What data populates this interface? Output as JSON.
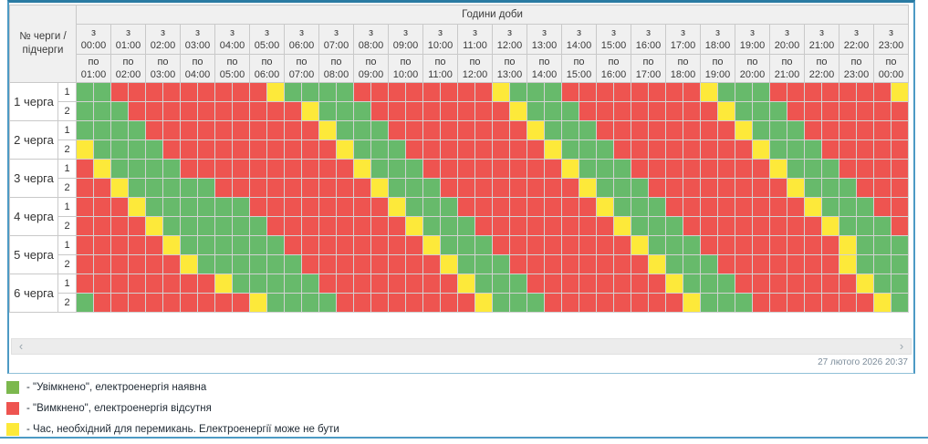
{
  "colors": {
    "on": "#67ba6b",
    "off": "#ee5450",
    "switch": "#fde93a"
  },
  "table": {
    "corner_label": "№ черги / підчерги",
    "hours_header": "Години доби",
    "from_prefix": "з",
    "to_prefix": "по",
    "hours": [
      {
        "from": "00:00",
        "to": "01:00"
      },
      {
        "from": "01:00",
        "to": "02:00"
      },
      {
        "from": "02:00",
        "to": "03:00"
      },
      {
        "from": "03:00",
        "to": "04:00"
      },
      {
        "from": "04:00",
        "to": "05:00"
      },
      {
        "from": "05:00",
        "to": "06:00"
      },
      {
        "from": "06:00",
        "to": "07:00"
      },
      {
        "from": "07:00",
        "to": "08:00"
      },
      {
        "from": "08:00",
        "to": "09:00"
      },
      {
        "from": "09:00",
        "to": "10:00"
      },
      {
        "from": "10:00",
        "to": "11:00"
      },
      {
        "from": "11:00",
        "to": "12:00"
      },
      {
        "from": "12:00",
        "to": "13:00"
      },
      {
        "from": "13:00",
        "to": "14:00"
      },
      {
        "from": "14:00",
        "to": "15:00"
      },
      {
        "from": "15:00",
        "to": "16:00"
      },
      {
        "from": "16:00",
        "to": "17:00"
      },
      {
        "from": "17:00",
        "to": "18:00"
      },
      {
        "from": "18:00",
        "to": "19:00"
      },
      {
        "from": "19:00",
        "to": "20:00"
      },
      {
        "from": "20:00",
        "to": "21:00"
      },
      {
        "from": "21:00",
        "to": "22:00"
      },
      {
        "from": "22:00",
        "to": "23:00"
      },
      {
        "from": "23:00",
        "to": "00:00"
      }
    ],
    "cell_legend": "G=on(green) R=off(red) Y=switching(yellow), 48 half-hour slots per row",
    "queues": [
      {
        "label": "1 черга",
        "subqueues": [
          {
            "label": "1",
            "cells": "GGRRRRRRRRRYGGGGRRRRRRRRYGGGRRRRRRRRYGGGRRRRRRRY"
          },
          {
            "label": "2",
            "cells": "GGGRRRRRRRRRRYGGGRRRRRRRRYGGGRRRRRRRRYGGGRRRRRRR"
          }
        ]
      },
      {
        "label": "2 черга",
        "subqueues": [
          {
            "label": "1",
            "cells": "GGGGRRRRRRRRRRYGGGRRRRRRRRYGGGRRRRRRRRYGGGRRRRRR"
          },
          {
            "label": "2",
            "cells": "YGGGGRRRRRRRRRRYGGGRRRRRRRRYGGGRRRRRRRRYGGGRRRRR"
          }
        ]
      },
      {
        "label": "3 черга",
        "subqueues": [
          {
            "label": "1",
            "cells": "RYGGGGRRRRRRRRRRYGGGRRRRRRRRYGGGRRRRRRRRYGGGRRRR"
          },
          {
            "label": "2",
            "cells": "RRYGGGGGRRRRRRRRRYGGGRRRRRRRRYGGGRRRRRRRRYGGGRRR"
          }
        ]
      },
      {
        "label": "4 черга",
        "subqueues": [
          {
            "label": "1",
            "cells": "RRRYGGGGGGRRRRRRRRYGGGRRRRRRRRYGGGRRRRRRRRYGGGRR"
          },
          {
            "label": "2",
            "cells": "RRRRYGGGGGGRRRRRRRRYGGGRRRRRRRRYGGGRRRRRRRRYGGGR"
          }
        ]
      },
      {
        "label": "5 черга",
        "subqueues": [
          {
            "label": "1",
            "cells": "RRRRRYGGGGGGRRRRRRRRYGGGRRRRRRRRYGGGRRRRRRRRYGGG"
          },
          {
            "label": "2",
            "cells": "RRRRRRYGGGGGGRRRRRRRRYGGGRRRRRRRRYGGGRRRRRRRYGGG"
          }
        ]
      },
      {
        "label": "6 черга",
        "subqueues": [
          {
            "label": "1",
            "cells": "RRRRRRRRYGGGGGRRRRRRRRYGGGRRRRRRRRYGGGRRRRRRRYGG"
          },
          {
            "label": "2",
            "cells": "GRRRRRRRRRYGGGGRRRRRRRRYGGGRRRRRRRRYGGGRRRRRRRYG"
          }
        ]
      }
    ]
  },
  "scrollbar": {
    "left_arrow": "‹",
    "right_arrow": "›"
  },
  "footer": {
    "timestamp": "27 лютого 2026 20:37"
  },
  "legend": [
    {
      "color": "#7cb84e",
      "label": "- \"Увімкнено\", електроенергія наявна"
    },
    {
      "color": "#ee5450",
      "label": "- \"Вимкнено\", електроенергія відсутня"
    },
    {
      "color": "#fde93a",
      "label": "- Час, необхідний для перемикань. Електроенергії може не бути"
    }
  ]
}
